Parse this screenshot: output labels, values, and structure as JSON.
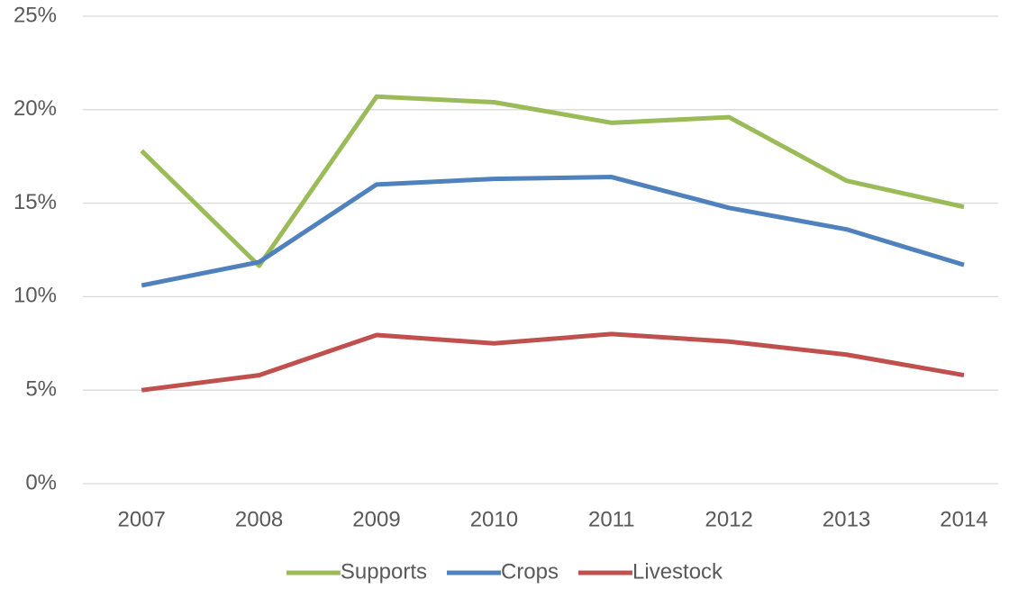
{
  "chart_data": {
    "type": "line",
    "categories": [
      "2007",
      "2008",
      "2009",
      "2010",
      "2011",
      "2012",
      "2013",
      "2014"
    ],
    "series": [
      {
        "name": "Supports",
        "color": "#9bbb59",
        "values": [
          17.8,
          11.65,
          20.7,
          20.4,
          19.3,
          19.6,
          16.2,
          14.8
        ]
      },
      {
        "name": "Crops",
        "color": "#4f81bd",
        "values": [
          10.6,
          11.85,
          16.0,
          16.3,
          16.4,
          14.75,
          13.6,
          11.7
        ]
      },
      {
        "name": "Livestock",
        "color": "#c0504d",
        "values": [
          5.0,
          5.8,
          7.95,
          7.5,
          8.0,
          7.6,
          6.9,
          5.8
        ]
      }
    ],
    "ylim": [
      0,
      25
    ],
    "yticks": [
      {
        "value": 0,
        "label": "0%"
      },
      {
        "value": 5,
        "label": "5%"
      },
      {
        "value": 10,
        "label": "10%"
      },
      {
        "value": 15,
        "label": "15%"
      },
      {
        "value": 20,
        "label": "20%"
      },
      {
        "value": 25,
        "label": "25%"
      }
    ],
    "grid": true,
    "legend": "bottom"
  }
}
